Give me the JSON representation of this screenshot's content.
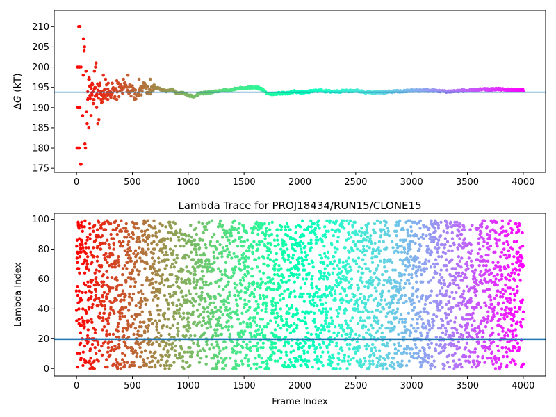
{
  "chart_data": [
    {
      "type": "scatter",
      "title": "",
      "xlabel": "",
      "ylabel": "ΔG (kT)",
      "ylabel_parts": {
        "symbol": "Δ",
        "var": "G",
        "unit": " (kT)"
      },
      "xlim": [
        -200,
        4200
      ],
      "ylim": [
        174,
        214
      ],
      "xticks": [
        0,
        500,
        1000,
        1500,
        2000,
        2500,
        3000,
        3500,
        4000
      ],
      "xtick_labels": [
        "0",
        "500",
        "1000",
        "1500",
        "2000",
        "2500",
        "3000",
        "3500",
        "4000"
      ],
      "yticks": [
        175,
        180,
        185,
        190,
        195,
        200,
        205,
        210
      ],
      "ytick_labels": [
        "175",
        "180",
        "185",
        "190",
        "195",
        "200",
        "205",
        "210"
      ],
      "hline": 193.8,
      "colormap": "rainbow (red to violet)",
      "trace": [
        [
          0,
          180
        ],
        [
          20,
          210
        ],
        [
          35,
          200
        ],
        [
          45,
          190
        ],
        [
          55,
          198
        ],
        [
          65,
          194
        ],
        [
          75,
          196
        ],
        [
          90,
          192
        ],
        [
          110,
          195
        ],
        [
          130,
          193
        ],
        [
          150,
          194
        ],
        [
          170,
          193
        ],
        [
          190,
          195
        ],
        [
          210,
          194
        ],
        [
          240,
          193
        ],
        [
          270,
          195
        ],
        [
          300,
          194
        ],
        [
          330,
          193.5
        ],
        [
          360,
          195
        ],
        [
          400,
          194
        ],
        [
          450,
          195
        ],
        [
          500,
          194
        ],
        [
          550,
          193
        ],
        [
          600,
          195
        ],
        [
          650,
          194
        ],
        [
          700,
          195
        ],
        [
          750,
          194.5
        ],
        [
          800,
          194
        ],
        [
          850,
          194.5
        ],
        [
          900,
          193.5
        ],
        [
          950,
          193.8
        ],
        [
          1000,
          193
        ],
        [
          1050,
          192.8
        ],
        [
          1100,
          193.5
        ],
        [
          1150,
          193.6
        ],
        [
          1200,
          193.8
        ],
        [
          1250,
          194
        ],
        [
          1300,
          194.3
        ],
        [
          1350,
          194.2
        ],
        [
          1400,
          194.5
        ],
        [
          1450,
          194.8
        ],
        [
          1500,
          194.7
        ],
        [
          1550,
          195
        ],
        [
          1600,
          195
        ],
        [
          1650,
          194.7
        ],
        [
          1700,
          193.6
        ],
        [
          1750,
          193.4
        ],
        [
          1800,
          193.5
        ],
        [
          1850,
          193.6
        ],
        [
          1900,
          193.6
        ],
        [
          1950,
          194
        ],
        [
          2000,
          193.8
        ],
        [
          2050,
          193.8
        ],
        [
          2100,
          194
        ],
        [
          2150,
          194.2
        ],
        [
          2200,
          194.2
        ],
        [
          2250,
          194
        ],
        [
          2300,
          194
        ],
        [
          2350,
          194
        ],
        [
          2400,
          194.1
        ],
        [
          2450,
          194.1
        ],
        [
          2500,
          194.2
        ],
        [
          2550,
          194
        ],
        [
          2600,
          193.8
        ],
        [
          2650,
          193.7
        ],
        [
          2700,
          193.8
        ],
        [
          2750,
          193.8
        ],
        [
          2800,
          193.9
        ],
        [
          2850,
          194
        ],
        [
          2900,
          194
        ],
        [
          2950,
          194.1
        ],
        [
          3000,
          194.2
        ],
        [
          3050,
          194.2
        ],
        [
          3100,
          194.3
        ],
        [
          3150,
          194.2
        ],
        [
          3200,
          194.2
        ],
        [
          3250,
          194.1
        ],
        [
          3300,
          194
        ],
        [
          3350,
          194
        ],
        [
          3400,
          194.1
        ],
        [
          3450,
          194.2
        ],
        [
          3500,
          194.2
        ],
        [
          3550,
          194.3
        ],
        [
          3600,
          194.4
        ],
        [
          3650,
          194.5
        ],
        [
          3700,
          194.4
        ],
        [
          3750,
          194.6
        ],
        [
          3800,
          194.5
        ],
        [
          3850,
          194.4
        ],
        [
          3900,
          194.4
        ],
        [
          3950,
          194.3
        ],
        [
          4000,
          194.3
        ]
      ],
      "early_scatter": [
        [
          5,
          180
        ],
        [
          15,
          180
        ],
        [
          25,
          180
        ],
        [
          10,
          190
        ],
        [
          20,
          190
        ],
        [
          30,
          190
        ],
        [
          10,
          200
        ],
        [
          25,
          200
        ],
        [
          40,
          200
        ],
        [
          20,
          210
        ],
        [
          30,
          210
        ],
        [
          35,
          176
        ],
        [
          40,
          176
        ],
        [
          55,
          188
        ],
        [
          60,
          198
        ],
        [
          62,
          207
        ],
        [
          68,
          204
        ],
        [
          72,
          205
        ],
        [
          75,
          181
        ],
        [
          80,
          180
        ],
        [
          85,
          199
        ],
        [
          90,
          189
        ],
        [
          95,
          186
        ],
        [
          100,
          192
        ],
        [
          110,
          185
        ],
        [
          115,
          197
        ],
        [
          120,
          193
        ],
        [
          130,
          188
        ],
        [
          140,
          196
        ],
        [
          150,
          191
        ],
        [
          160,
          199
        ],
        [
          170,
          200
        ],
        [
          175,
          201
        ],
        [
          180,
          190
        ],
        [
          190,
          186
        ],
        [
          200,
          187
        ],
        [
          210,
          196
        ],
        [
          220,
          192
        ],
        [
          240,
          198
        ],
        [
          260,
          197
        ],
        [
          280,
          192
        ],
        [
          320,
          196
        ],
        [
          360,
          192
        ],
        [
          420,
          197
        ],
        [
          460,
          198
        ],
        [
          520,
          192
        ],
        [
          560,
          197
        ],
        [
          610,
          196
        ],
        [
          660,
          197
        ]
      ]
    },
    {
      "type": "scatter",
      "title": "Lambda Trace for PROJ18434/RUN15/CLONE15",
      "xlabel": "Frame Index",
      "ylabel": "Lambda Index",
      "xlim": [
        -200,
        4200
      ],
      "ylim": [
        -5,
        104
      ],
      "xticks": [
        0,
        500,
        1000,
        1500,
        2000,
        2500,
        3000,
        3500,
        4000
      ],
      "xtick_labels": [
        "0",
        "500",
        "1000",
        "1500",
        "2000",
        "2500",
        "3000",
        "3500",
        "4000"
      ],
      "yticks": [
        0,
        20,
        40,
        60,
        80,
        100
      ],
      "ytick_labels": [
        "0",
        "20",
        "40",
        "60",
        "80",
        "100"
      ],
      "hline": 19.5,
      "colormap": "rainbow (red to violet)",
      "frame_range": [
        0,
        4000
      ],
      "lambda_range": [
        0,
        99
      ],
      "point_count": 4000
    }
  ]
}
